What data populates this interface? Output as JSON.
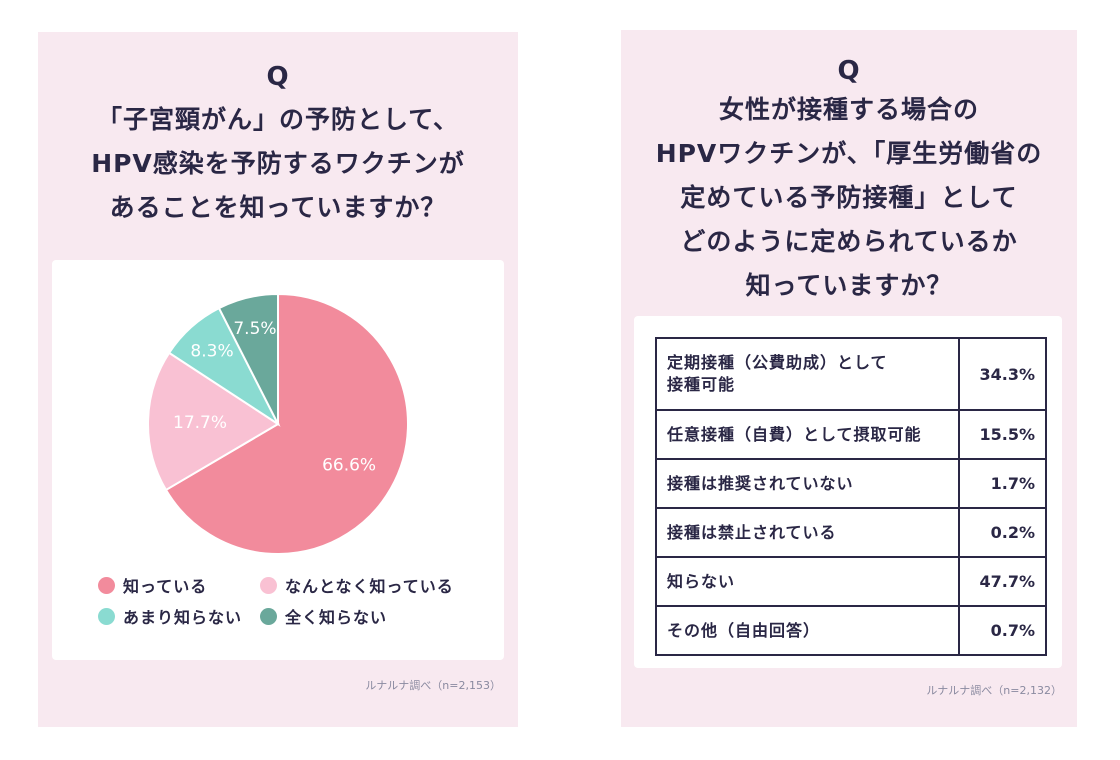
{
  "left": {
    "q": "Q",
    "title_lines": [
      "「子宮頸がん」の予防として、",
      "HPV感染を予防するワクチンが",
      "あることを知っていますか？"
    ],
    "source": "ルナルナ調べ（n=2,153）"
  },
  "right": {
    "q": "Q",
    "title_lines": [
      "女性が接種する場合の",
      "HPVワクチンが、「厚生労働省の",
      "定めている予防接種」として",
      "どのように定められているか",
      "知っていますか？"
    ],
    "table": [
      {
        "label_lines": [
          "定期接種（公費助成）として",
          "接種可能"
        ],
        "value": "34.3%"
      },
      {
        "label_lines": [
          "任意接種（自費）として摂取可能"
        ],
        "value": "15.5%"
      },
      {
        "label_lines": [
          "接種は推奨されていない"
        ],
        "value": "1.7%"
      },
      {
        "label_lines": [
          "接種は禁止されている"
        ],
        "value": "0.2%"
      },
      {
        "label_lines": [
          "知らない"
        ],
        "value": "47.7%"
      },
      {
        "label_lines": [
          "その他（自由回答）"
        ],
        "value": "0.7%"
      }
    ],
    "source": "ルナルナ調べ（n=2,132）"
  },
  "chart_data": [
    {
      "type": "pie",
      "title": "「子宮頸がん」の予防として、HPV感染を予防するワクチンがあることを知っていますか？",
      "categories": [
        "知っている",
        "なんとなく知っている",
        "あまり知らない",
        "全く知らない"
      ],
      "values": [
        66.6,
        17.7,
        8.3,
        7.5
      ],
      "labels": [
        "66.6%",
        "17.7%",
        "8.3%",
        "7.5%"
      ],
      "colors": [
        "#f28b9c",
        "#f9c1d3",
        "#8adbd1",
        "#6aa89b"
      ],
      "legend_position": "bottom",
      "source": "ルナルナ調べ（n=2,153）"
    },
    {
      "type": "table",
      "title": "女性が接種する場合のHPVワクチンが、「厚生労働省の定めている予防接種」としてどのように定められているか知っていますか？",
      "categories": [
        "定期接種（公費助成）として接種可能",
        "任意接種（自費）として摂取可能",
        "接種は推奨されていない",
        "接種は禁止されている",
        "知らない",
        "その他（自由回答）"
      ],
      "values": [
        34.3,
        15.5,
        1.7,
        0.2,
        47.7,
        0.7
      ],
      "source": "ルナルナ調べ（n=2,132）"
    }
  ]
}
